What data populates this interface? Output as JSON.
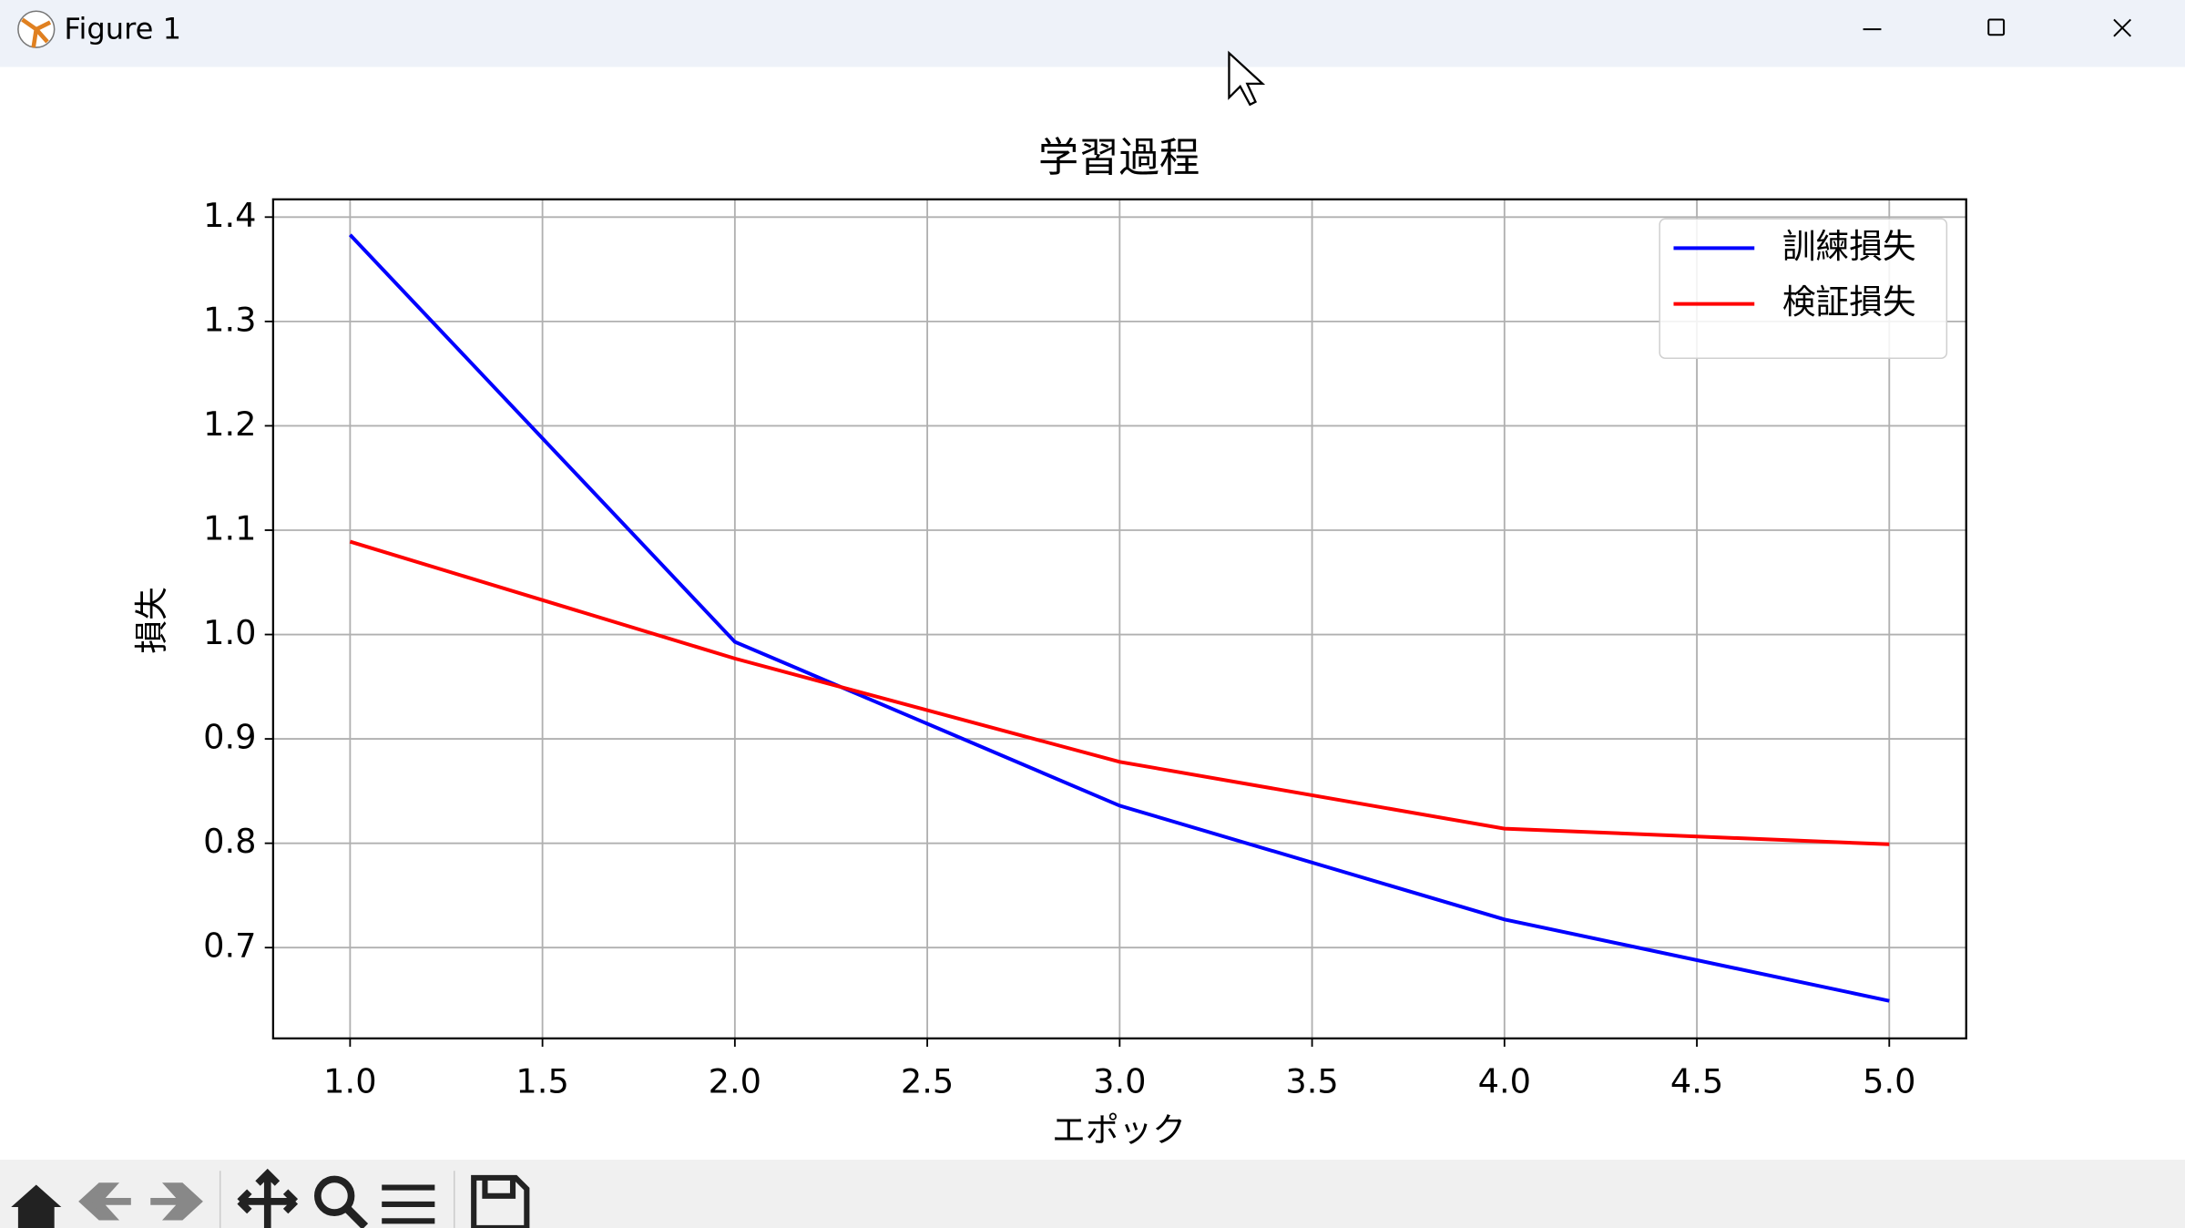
{
  "window": {
    "title": "Figure 1"
  },
  "chart_data": {
    "type": "line",
    "title": "学習過程",
    "xlabel": "エポック",
    "ylabel": "損失",
    "x": [
      1,
      2,
      3,
      4,
      5
    ],
    "series": [
      {
        "name": "訓練損失",
        "color": "#0000ff",
        "values": [
          1.383,
          0.993,
          0.836,
          0.727,
          0.649
        ]
      },
      {
        "name": "検証損失",
        "color": "#ff0000",
        "values": [
          1.089,
          0.977,
          0.878,
          0.814,
          0.799
        ]
      }
    ],
    "xlim": [
      0.8,
      5.2
    ],
    "xticks": [
      {
        "value": 1,
        "label": "1.0"
      },
      1.5,
      {
        "value": 2,
        "label": "2.0"
      },
      2.5,
      {
        "value": 3,
        "label": "3.0"
      },
      3.5,
      {
        "value": 4,
        "label": "4.0"
      },
      4.5,
      {
        "value": 5,
        "label": "5.0"
      }
    ],
    "ylim": [
      0.613,
      1.417
    ],
    "yticks": [
      0.7,
      0.8,
      0.9,
      {
        "value": 1,
        "label": "1.0"
      },
      1.1,
      1.2,
      1.3,
      1.4
    ],
    "grid": true,
    "legend": "upper right"
  }
}
